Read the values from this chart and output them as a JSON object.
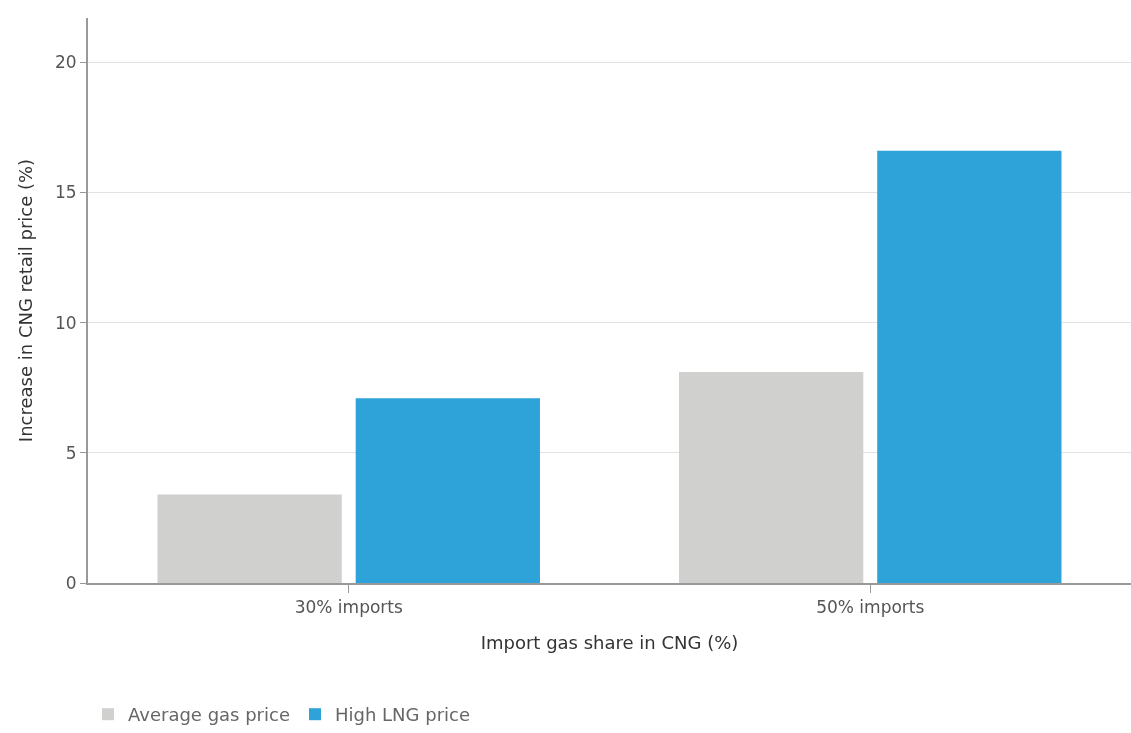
{
  "chart_data": {
    "type": "bar",
    "xlabel": "Import gas share in CNG (%)",
    "ylabel": "Increase in CNG retail price (%)",
    "categories": [
      "30% imports",
      "50% imports"
    ],
    "series": [
      {
        "name": "Average gas price",
        "color": "#d0d0ce",
        "values": [
          3.4,
          8.1
        ]
      },
      {
        "name": "High LNG price",
        "color": "#2ea3da",
        "values": [
          7.1,
          16.6
        ]
      }
    ],
    "ylim": [
      0,
      21.7
    ],
    "yticks": [
      0,
      5,
      10,
      15,
      20
    ],
    "grid": "y",
    "legend": "bottom left"
  }
}
